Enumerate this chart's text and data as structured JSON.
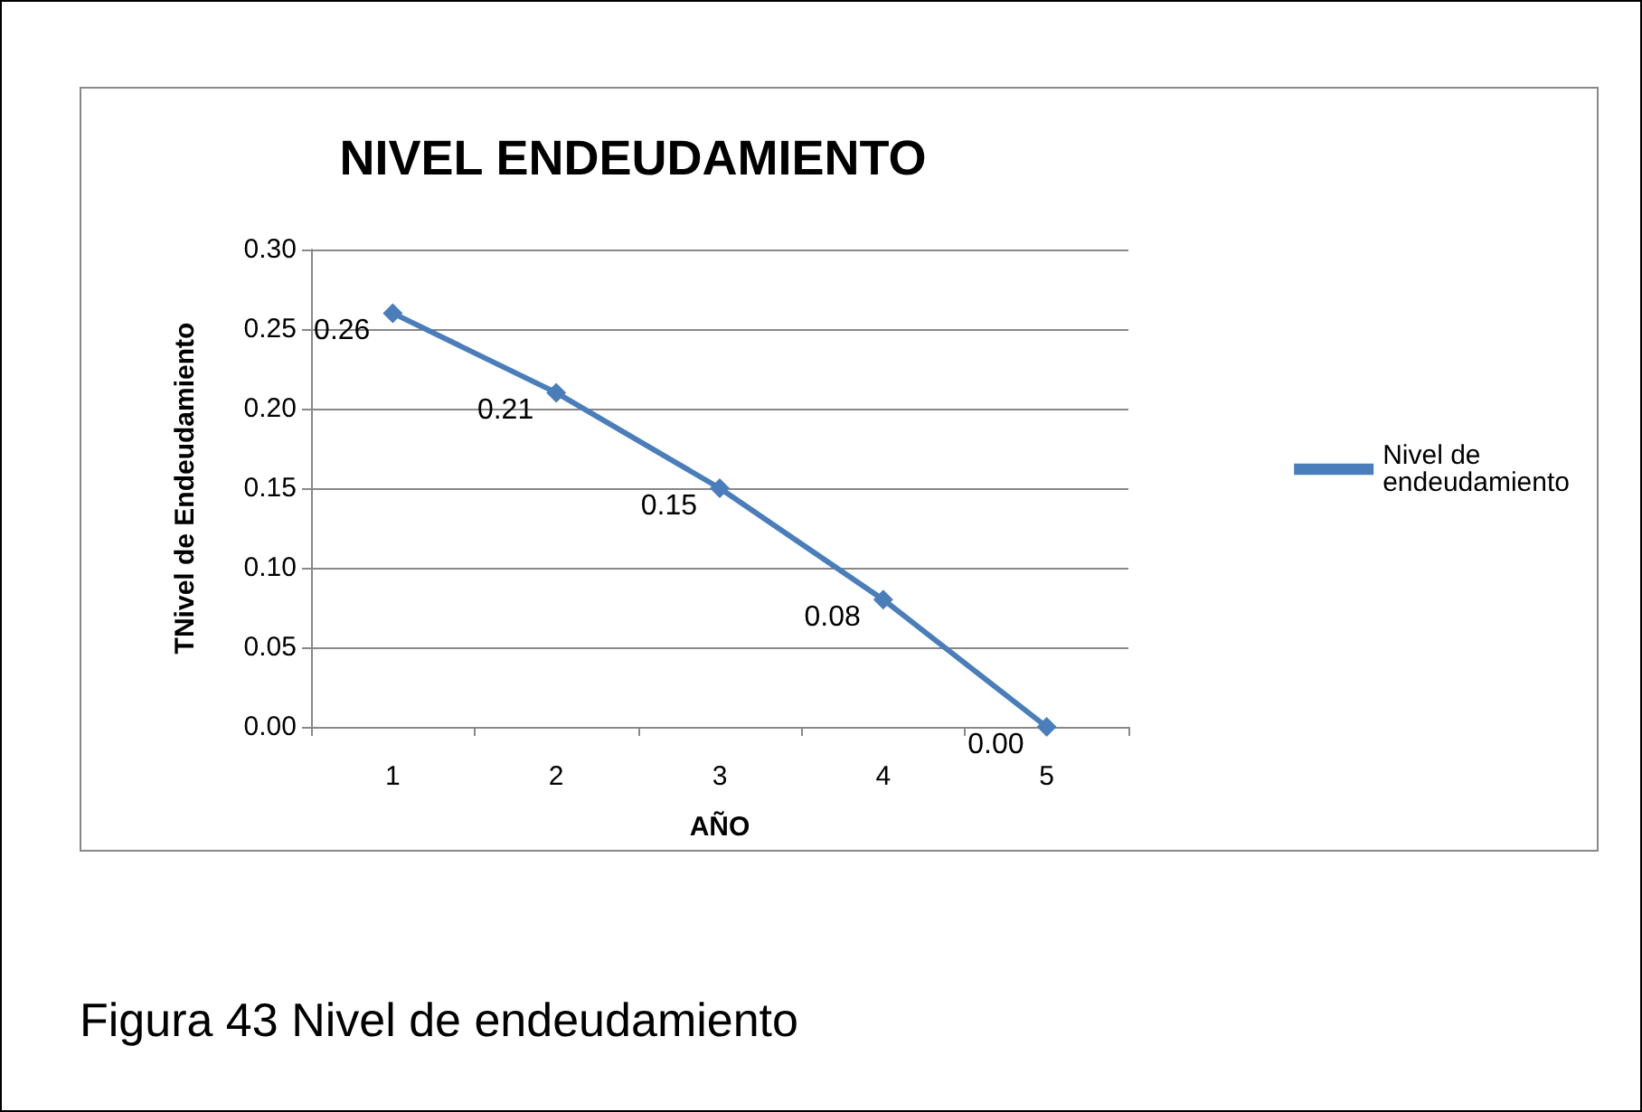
{
  "chart_data": {
    "type": "line",
    "title": "NIVEL ENDEUDAMIENTO",
    "xlabel": "AÑO",
    "ylabel": "TNivel de Endeudamiento",
    "categories": [
      "1",
      "2",
      "3",
      "4",
      "5"
    ],
    "series": [
      {
        "name": "Nivel de endeudamiento",
        "color": "#4a7ebb",
        "values": [
          0.26,
          0.21,
          0.15,
          0.08,
          0.0
        ],
        "value_labels": [
          "0.26",
          "0.21",
          "0.15",
          "0.08",
          "0.00"
        ]
      }
    ],
    "ylim": [
      0,
      0.3
    ],
    "yticks": [
      {
        "value": 0,
        "label": "0.00"
      },
      {
        "value": 0.05,
        "label": "0.05"
      },
      {
        "value": 0.1,
        "label": "0.10"
      },
      {
        "value": 0.15,
        "label": "0.15"
      },
      {
        "value": 0.2,
        "label": "0.20"
      },
      {
        "value": 0.25,
        "label": "0.25"
      },
      {
        "value": 0.3,
        "label": "0.30"
      }
    ],
    "grid": "y",
    "legend": "right",
    "marker": "diamond",
    "line_style": "solid",
    "annotations": [
      "Figura 43 Nivel de endeudamiento"
    ]
  }
}
